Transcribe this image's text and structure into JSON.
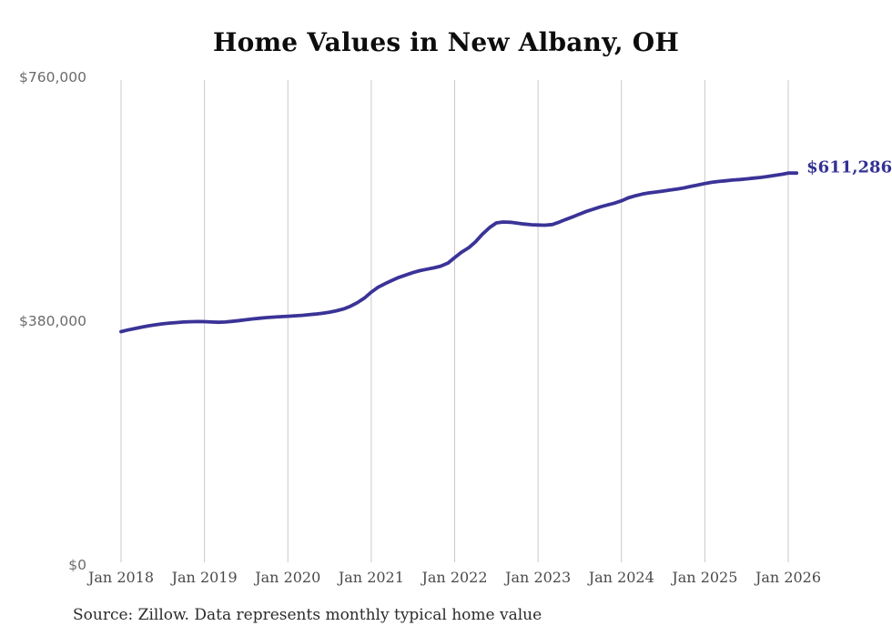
{
  "chart_data": {
    "type": "line",
    "title": "Home Values in New Albany, OH",
    "xlabel": "",
    "ylabel": "",
    "grid": "vertical",
    "gridline_color": "#c9c9c9",
    "xlim": [
      2018,
      2026.12
    ],
    "ylim": [
      0,
      760000
    ],
    "legend": "none",
    "end_label": "$611,286",
    "end_label_color": "#333193",
    "x_ticks": [
      {
        "value": 2018,
        "label": "Jan 2018"
      },
      {
        "value": 2019,
        "label": "Jan 2019"
      },
      {
        "value": 2020,
        "label": "Jan 2020"
      },
      {
        "value": 2021,
        "label": "Jan 2021"
      },
      {
        "value": 2022,
        "label": "Jan 2022"
      },
      {
        "value": 2023,
        "label": "Jan 2023"
      },
      {
        "value": 2024,
        "label": "Jan 2024"
      },
      {
        "value": 2025,
        "label": "Jan 2025"
      },
      {
        "value": 2026,
        "label": "Jan 2026"
      }
    ],
    "y_ticks": [
      {
        "value": 0,
        "label": "$0"
      },
      {
        "value": 380000,
        "label": "$380,000"
      },
      {
        "value": 760000,
        "label": "$760,000"
      }
    ],
    "series": [
      {
        "name": "Monthly typical home value",
        "color": "#3a3397",
        "final_value": 611286,
        "points": [
          [
            2018.0,
            364000
          ],
          [
            2018.08,
            366500
          ],
          [
            2018.17,
            369000
          ],
          [
            2018.25,
            371000
          ],
          [
            2018.33,
            373000
          ],
          [
            2018.42,
            374800
          ],
          [
            2018.5,
            376200
          ],
          [
            2018.58,
            377300
          ],
          [
            2018.67,
            378200
          ],
          [
            2018.75,
            379000
          ],
          [
            2018.83,
            379500
          ],
          [
            2018.92,
            379700
          ],
          [
            2019.0,
            379600
          ],
          [
            2019.08,
            379000
          ],
          [
            2019.17,
            378600
          ],
          [
            2019.25,
            379000
          ],
          [
            2019.33,
            380000
          ],
          [
            2019.42,
            381300
          ],
          [
            2019.5,
            382600
          ],
          [
            2019.58,
            383800
          ],
          [
            2019.67,
            384900
          ],
          [
            2019.75,
            385900
          ],
          [
            2019.83,
            386700
          ],
          [
            2019.92,
            387400
          ],
          [
            2020.0,
            388000
          ],
          [
            2020.08,
            388700
          ],
          [
            2020.17,
            389400
          ],
          [
            2020.25,
            390300
          ],
          [
            2020.33,
            391400
          ],
          [
            2020.42,
            392700
          ],
          [
            2020.5,
            394300
          ],
          [
            2020.58,
            396500
          ],
          [
            2020.67,
            399500
          ],
          [
            2020.75,
            403500
          ],
          [
            2020.83,
            409000
          ],
          [
            2020.92,
            416500
          ],
          [
            2021.0,
            425500
          ],
          [
            2021.08,
            433000
          ],
          [
            2021.17,
            439000
          ],
          [
            2021.25,
            444000
          ],
          [
            2021.33,
            448500
          ],
          [
            2021.42,
            452500
          ],
          [
            2021.5,
            456000
          ],
          [
            2021.58,
            459000
          ],
          [
            2021.67,
            461500
          ],
          [
            2021.75,
            463500
          ],
          [
            2021.83,
            466000
          ],
          [
            2021.92,
            471000
          ],
          [
            2022.0,
            479500
          ],
          [
            2022.08,
            487500
          ],
          [
            2022.17,
            495000
          ],
          [
            2022.25,
            504000
          ],
          [
            2022.33,
            515500
          ],
          [
            2022.42,
            526500
          ],
          [
            2022.5,
            533500
          ],
          [
            2022.58,
            535000
          ],
          [
            2022.67,
            534500
          ],
          [
            2022.75,
            533200
          ],
          [
            2022.83,
            531800
          ],
          [
            2022.92,
            530700
          ],
          [
            2023.0,
            530200
          ],
          [
            2023.08,
            530000
          ],
          [
            2023.17,
            531000
          ],
          [
            2023.25,
            534500
          ],
          [
            2023.33,
            538800
          ],
          [
            2023.42,
            543200
          ],
          [
            2023.5,
            547500
          ],
          [
            2023.58,
            551500
          ],
          [
            2023.67,
            555200
          ],
          [
            2023.75,
            558600
          ],
          [
            2023.83,
            561500
          ],
          [
            2023.92,
            564500
          ],
          [
            2024.0,
            568000
          ],
          [
            2024.08,
            572500
          ],
          [
            2024.17,
            576000
          ],
          [
            2024.25,
            578500
          ],
          [
            2024.33,
            580300
          ],
          [
            2024.42,
            581800
          ],
          [
            2024.5,
            583200
          ],
          [
            2024.58,
            584700
          ],
          [
            2024.67,
            586300
          ],
          [
            2024.75,
            588200
          ],
          [
            2024.83,
            590400
          ],
          [
            2024.92,
            592700
          ],
          [
            2025.0,
            595000
          ],
          [
            2025.08,
            596800
          ],
          [
            2025.17,
            598200
          ],
          [
            2025.25,
            599300
          ],
          [
            2025.33,
            600300
          ],
          [
            2025.42,
            601200
          ],
          [
            2025.5,
            602200
          ],
          [
            2025.58,
            603300
          ],
          [
            2025.67,
            604500
          ],
          [
            2025.75,
            605900
          ],
          [
            2025.83,
            607500
          ],
          [
            2025.92,
            609300
          ],
          [
            2026.0,
            611286
          ],
          [
            2026.1,
            611286
          ]
        ]
      }
    ]
  },
  "source": {
    "text": "Source: Zillow. Data represents monthly typical home value"
  }
}
